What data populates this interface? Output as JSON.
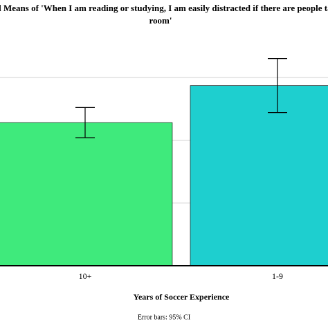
{
  "chart_data": {
    "type": "bar",
    "title_lines": [
      "nal Means of 'When I am reading or studying, I am easily distracted if there are people ta",
      "room'"
    ],
    "categories": [
      "10+",
      "1-9"
    ],
    "values": [
      2.28,
      2.87
    ],
    "errors": [
      0.24,
      0.43
    ],
    "colors": [
      "#3fea7c",
      "#1ecfcf"
    ],
    "ylim": [
      0,
      4.2
    ],
    "yticks": [
      1,
      2,
      3
    ],
    "grid": true,
    "x_label": "Years of Soccer Experience",
    "note": "Error bars: 95% CI"
  }
}
